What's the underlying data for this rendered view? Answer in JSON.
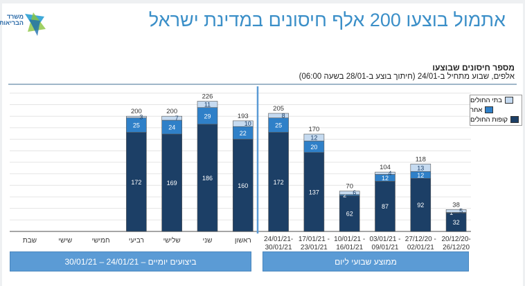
{
  "header": {
    "title": "אתמול בוצעו 200 אלף חיסונים במדינת ישראל",
    "logo_text": "משרד הבריאות"
  },
  "chart_data": {
    "type": "bar",
    "stacked": true,
    "title": "מספר חיסונים שבוצעו",
    "subtitle": "אלפים, שבוע מתחיל ב-24/01 (חיתוך בוצע ב-28/01 בשעה 06:00)",
    "categories": [
      "שבת",
      "שישי",
      "חמישי",
      "רביעי",
      "שלישי",
      "שני",
      "ראשון",
      "24/01/21-\n30/01/21",
      "17/01/21 -\n23/01/21",
      "10/01/21 -\n16/01/21",
      "03/01/21 -\n09/01/21",
      "27/12/20 -\n02/01/21",
      "20/12/20-\n26/12/20"
    ],
    "series": [
      {
        "name": "קופות החולים",
        "color": "#1c3f66",
        "values": [
          null,
          null,
          null,
          172,
          169,
          186,
          160,
          172,
          137,
          62,
          87,
          92,
          32
        ]
      },
      {
        "name": "אחר",
        "color": "#2f80c8",
        "values": [
          null,
          null,
          null,
          25,
          24,
          29,
          22,
          25,
          20,
          2,
          12,
          12,
          1
        ]
      },
      {
        "name": "בתי החולים",
        "color": "#c5daf0",
        "values": [
          null,
          null,
          null,
          3,
          7,
          11,
          10,
          8,
          12,
          6,
          4,
          13,
          5
        ]
      }
    ],
    "totals": [
      null,
      null,
      null,
      200,
      200,
      226,
      193,
      205,
      170,
      70,
      104,
      118,
      38
    ],
    "ylim": [
      0,
      240
    ],
    "grid": true,
    "legend": "top-right",
    "groups": [
      {
        "label": "ביצועים יומיים – 24/01/21 – 30/01/21"
      },
      {
        "label": "ממוצע שבועי ליום"
      }
    ]
  }
}
